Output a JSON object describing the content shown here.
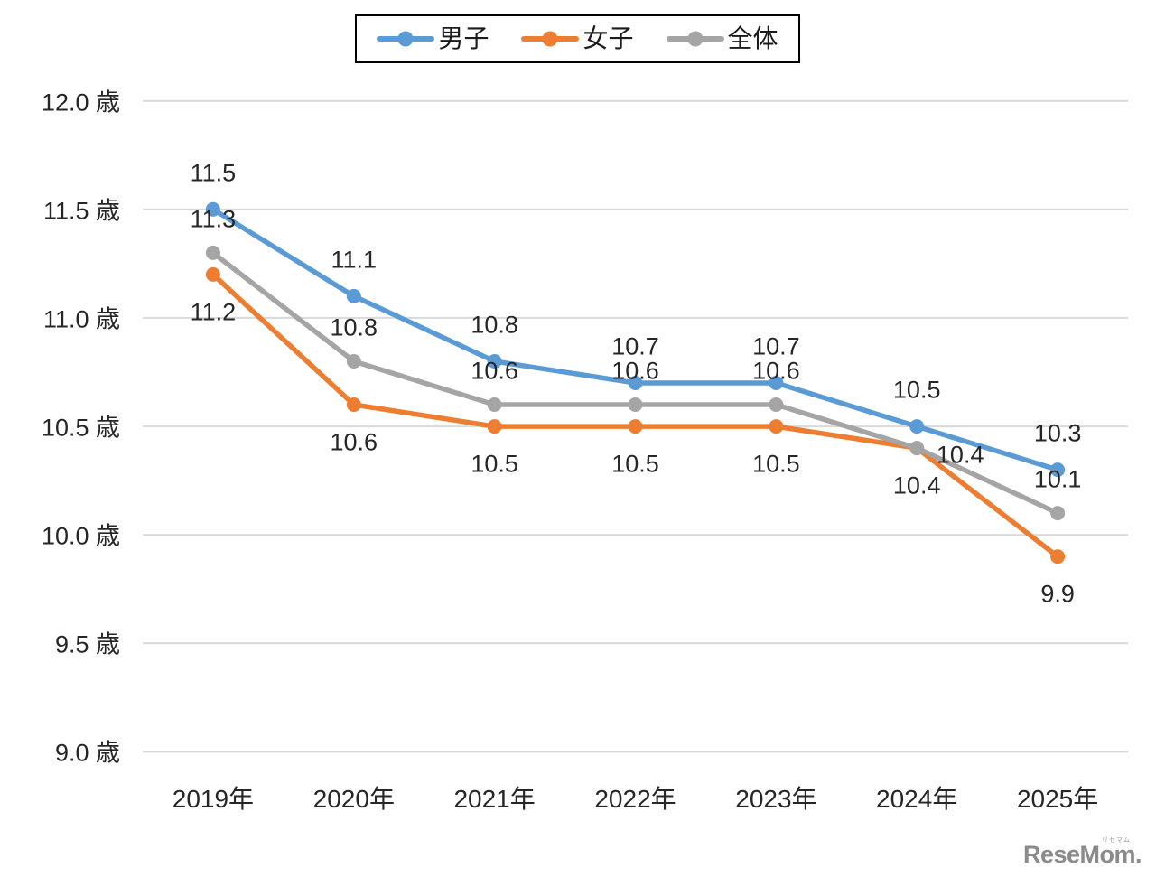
{
  "page": {
    "background": "#ffffff"
  },
  "watermark": {
    "text": "ReseMom.",
    "ruby": "リセマム",
    "color": "#8B8B8B"
  },
  "chart_data": {
    "type": "line",
    "title": "",
    "x": [
      "2019年",
      "2020年",
      "2021年",
      "2022年",
      "2023年",
      "2024年",
      "2025年"
    ],
    "series": [
      {
        "id": "boys",
        "name": "男子",
        "color": "#5B9BD5",
        "values": [
          11.5,
          11.1,
          10.8,
          10.7,
          10.7,
          10.5,
          10.3
        ],
        "labels": [
          "11.5",
          "11.1",
          "10.8",
          "10.7",
          "10.7",
          "10.5",
          "10.3"
        ]
      },
      {
        "id": "girls",
        "name": "女子",
        "color": "#ED7D31",
        "values": [
          11.2,
          10.6,
          10.5,
          10.5,
          10.5,
          10.4,
          9.9
        ],
        "labels": [
          "11.2",
          "10.6",
          "10.5",
          "10.5",
          "10.5",
          "10.4",
          "9.9"
        ]
      },
      {
        "id": "overall",
        "name": "全体",
        "color": "#A5A5A5",
        "values": [
          11.3,
          10.8,
          10.6,
          10.6,
          10.6,
          10.4,
          10.1
        ],
        "labels": [
          "11.3",
          "10.8",
          "10.6",
          "10.6",
          "10.6",
          "10.4",
          "10.1"
        ]
      }
    ],
    "y_axis": {
      "min": 9.0,
      "max": 12.0,
      "step": 0.5,
      "unit": "歳",
      "tick_labels": [
        "12.0 歳",
        "11.5 歳",
        "11.0 歳",
        "10.5 歳",
        "10.0 歳",
        "9.5 歳",
        "9.0 歳"
      ]
    },
    "grid": "horizontal",
    "gridline_color": "#D9D9D9",
    "legend": {
      "position": "top",
      "border": "#000000",
      "entries": [
        "男子",
        "女子",
        "全体"
      ]
    },
    "data_labels": "on",
    "label_offsets": {
      "defaults": {
        "boys": {
          "dx": 0,
          "dy": -40
        },
        "girls": {
          "dx": 0,
          "dy": 42
        },
        "overall": {
          "dx": 0,
          "dy": -37
        }
      },
      "overrides": [
        {
          "series": "overall",
          "index": 5,
          "dx": 48,
          "dy": 8
        }
      ]
    }
  }
}
